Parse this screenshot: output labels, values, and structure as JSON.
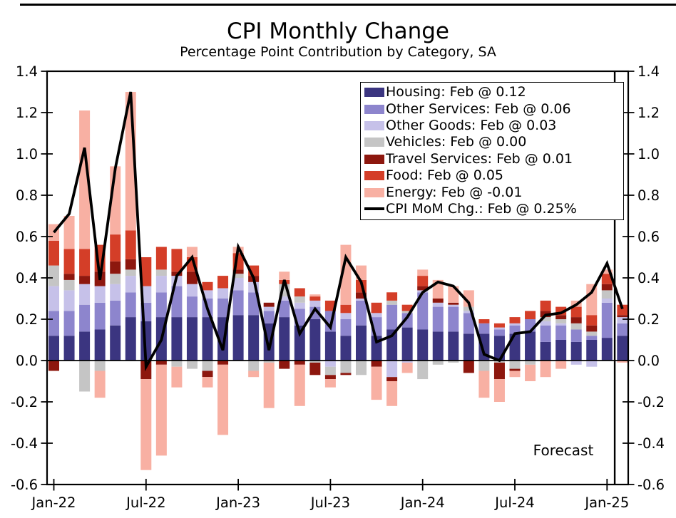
{
  "chart_data": {
    "type": "bar",
    "subtype": "stacked-bar-with-line-overlay",
    "title": "CPI Monthly Change",
    "subtitle": "Percentage Point Contribution by Category, SA",
    "grid": false,
    "legend_position": "upper right",
    "y_axis_mirrored": true,
    "ylim": [
      -0.6,
      1.4
    ],
    "y_tick_values": [
      1.4,
      1.2,
      1.0,
      0.8,
      0.6,
      0.4,
      0.2,
      0.0,
      -0.2,
      -0.4,
      -0.6
    ],
    "y_tick_labels": [
      "1.4",
      "1.2",
      "1.0",
      "0.8",
      "0.6",
      "0.4",
      "0.2",
      "0.0",
      "-0.2",
      "-0.4",
      "-0.6"
    ],
    "x": [
      "Jan-22",
      "Feb-22",
      "Mar-22",
      "Apr-22",
      "May-22",
      "Jun-22",
      "Jul-22",
      "Aug-22",
      "Sep-22",
      "Oct-22",
      "Nov-22",
      "Dec-22",
      "Jan-23",
      "Feb-23",
      "Mar-23",
      "Apr-23",
      "May-23",
      "Jun-23",
      "Jul-23",
      "Aug-23",
      "Sep-23",
      "Oct-23",
      "Nov-23",
      "Dec-23",
      "Jan-24",
      "Feb-24",
      "Mar-24",
      "Apr-24",
      "May-24",
      "Jun-24",
      "Jul-24",
      "Aug-24",
      "Sep-24",
      "Oct-24",
      "Nov-24",
      "Dec-24",
      "Jan-25",
      "Feb-25"
    ],
    "x_tick_indices": [
      0,
      6,
      12,
      18,
      24,
      30,
      36
    ],
    "x_tick_labels": [
      "Jan-22",
      "Jul-22",
      "Jan-23",
      "Jul-23",
      "Jan-24",
      "Jul-24",
      "Jan-25"
    ],
    "series": [
      {
        "name": "Housing",
        "legend_label": "Housing: Feb @ 0.12",
        "color": "#3b3580",
        "values": [
          0.12,
          0.12,
          0.14,
          0.15,
          0.17,
          0.21,
          0.19,
          0.21,
          0.21,
          0.21,
          0.21,
          0.21,
          0.22,
          0.22,
          0.18,
          0.21,
          0.17,
          0.2,
          0.14,
          0.12,
          0.17,
          0.12,
          0.15,
          0.16,
          0.15,
          0.14,
          0.14,
          0.13,
          0.13,
          0.12,
          0.13,
          0.14,
          0.09,
          0.1,
          0.09,
          0.1,
          0.11,
          0.12
        ]
      },
      {
        "name": "Other Services",
        "legend_label": "Other Services: Feb @ 0.06",
        "color": "#8d85cd",
        "values": [
          0.12,
          0.12,
          0.13,
          0.13,
          0.12,
          0.12,
          0.09,
          0.12,
          0.15,
          0.1,
          0.09,
          0.09,
          0.12,
          0.11,
          0.06,
          0.08,
          0.08,
          0.06,
          0.1,
          0.08,
          0.12,
          0.09,
          0.12,
          0.07,
          0.18,
          0.12,
          0.12,
          0.1,
          0.05,
          0.03,
          0.04,
          0.06,
          0.08,
          0.07,
          0.06,
          0.02,
          0.17,
          0.06
        ]
      },
      {
        "name": "Other Goods",
        "legend_label": "Other Goods: Feb @ 0.03",
        "color": "#c6c1e9",
        "values": [
          0.12,
          0.1,
          0.1,
          0.08,
          0.08,
          0.08,
          0.08,
          0.08,
          0.05,
          0.06,
          0.04,
          0.05,
          0.06,
          0.05,
          0.02,
          0.02,
          0.03,
          0.03,
          -0.03,
          0.03,
          0.01,
          0.02,
          -0.08,
          -0.01,
          0.01,
          0.02,
          0.01,
          0.01,
          0.0,
          0.01,
          0.01,
          0.0,
          0.02,
          0.01,
          -0.02,
          -0.03,
          0.02,
          0.03
        ]
      },
      {
        "name": "Vehicles",
        "legend_label": "Vehicles: Feb @ 0.00",
        "color": "#c5c5c5",
        "values": [
          0.1,
          0.05,
          -0.15,
          -0.05,
          0.05,
          0.03,
          0.0,
          0.03,
          -0.03,
          -0.04,
          -0.05,
          0.0,
          0.02,
          -0.05,
          -0.01,
          0.06,
          0.03,
          -0.01,
          -0.04,
          -0.06,
          -0.07,
          0.0,
          0.02,
          0.01,
          -0.09,
          -0.02,
          -0.01,
          0.02,
          -0.05,
          -0.01,
          -0.04,
          -0.02,
          0.02,
          0.02,
          0.03,
          0.02,
          0.04,
          0.0
        ]
      },
      {
        "name": "Travel Services",
        "legend_label": "Travel Services: Feb @ 0.01",
        "color": "#8d170e",
        "values": [
          -0.05,
          0.03,
          0.04,
          0.07,
          0.06,
          0.05,
          -0.09,
          -0.02,
          0.02,
          0.06,
          -0.03,
          -0.02,
          0.02,
          0.03,
          0.02,
          -0.04,
          -0.02,
          -0.06,
          -0.02,
          -0.01,
          0.03,
          -0.03,
          -0.02,
          0.0,
          0.02,
          0.02,
          0.01,
          -0.06,
          0.0,
          -0.08,
          -0.01,
          0.0,
          0.03,
          0.02,
          0.03,
          0.03,
          0.03,
          0.01
        ]
      },
      {
        "name": "Food",
        "legend_label": "Food: Feb @ 0.05",
        "color": "#d43e28",
        "values": [
          0.12,
          0.12,
          0.13,
          0.13,
          0.13,
          0.14,
          0.14,
          0.11,
          0.11,
          0.07,
          0.04,
          0.06,
          0.08,
          0.05,
          0.0,
          0.02,
          0.04,
          0.02,
          0.05,
          0.04,
          0.06,
          0.05,
          0.04,
          0.03,
          0.05,
          0.0,
          0.0,
          0.0,
          0.02,
          0.02,
          0.03,
          0.04,
          0.05,
          0.04,
          0.05,
          0.05,
          0.05,
          0.05
        ]
      },
      {
        "name": "Energy",
        "legend_label": "Energy: Feb @ -0.01",
        "color": "#f8b0a3",
        "values": [
          0.08,
          0.16,
          0.67,
          -0.13,
          0.33,
          0.67,
          -0.44,
          -0.44,
          -0.1,
          0.05,
          -0.05,
          -0.34,
          0.03,
          -0.03,
          -0.22,
          0.04,
          -0.2,
          0.01,
          -0.04,
          0.29,
          0.07,
          -0.16,
          -0.12,
          -0.05,
          0.03,
          0.09,
          0.08,
          0.08,
          -0.13,
          -0.11,
          -0.03,
          -0.08,
          -0.08,
          -0.04,
          0.03,
          0.15,
          0.02,
          -0.01
        ]
      }
    ],
    "line_series": {
      "name": "CPI MoM Chg.",
      "legend_label": "CPI MoM Chg.: Feb @ 0.25%",
      "color": "#000000",
      "values": [
        0.62,
        0.71,
        1.03,
        0.39,
        0.93,
        1.3,
        -0.03,
        0.1,
        0.41,
        0.5,
        0.25,
        0.05,
        0.55,
        0.4,
        0.05,
        0.39,
        0.13,
        0.25,
        0.16,
        0.5,
        0.38,
        0.09,
        0.12,
        0.21,
        0.33,
        0.38,
        0.36,
        0.28,
        0.03,
        0.0,
        0.13,
        0.14,
        0.22,
        0.23,
        0.27,
        0.33,
        0.47,
        0.25
      ]
    },
    "forecast": {
      "label": "Forecast",
      "divider_after_index": 36
    }
  }
}
